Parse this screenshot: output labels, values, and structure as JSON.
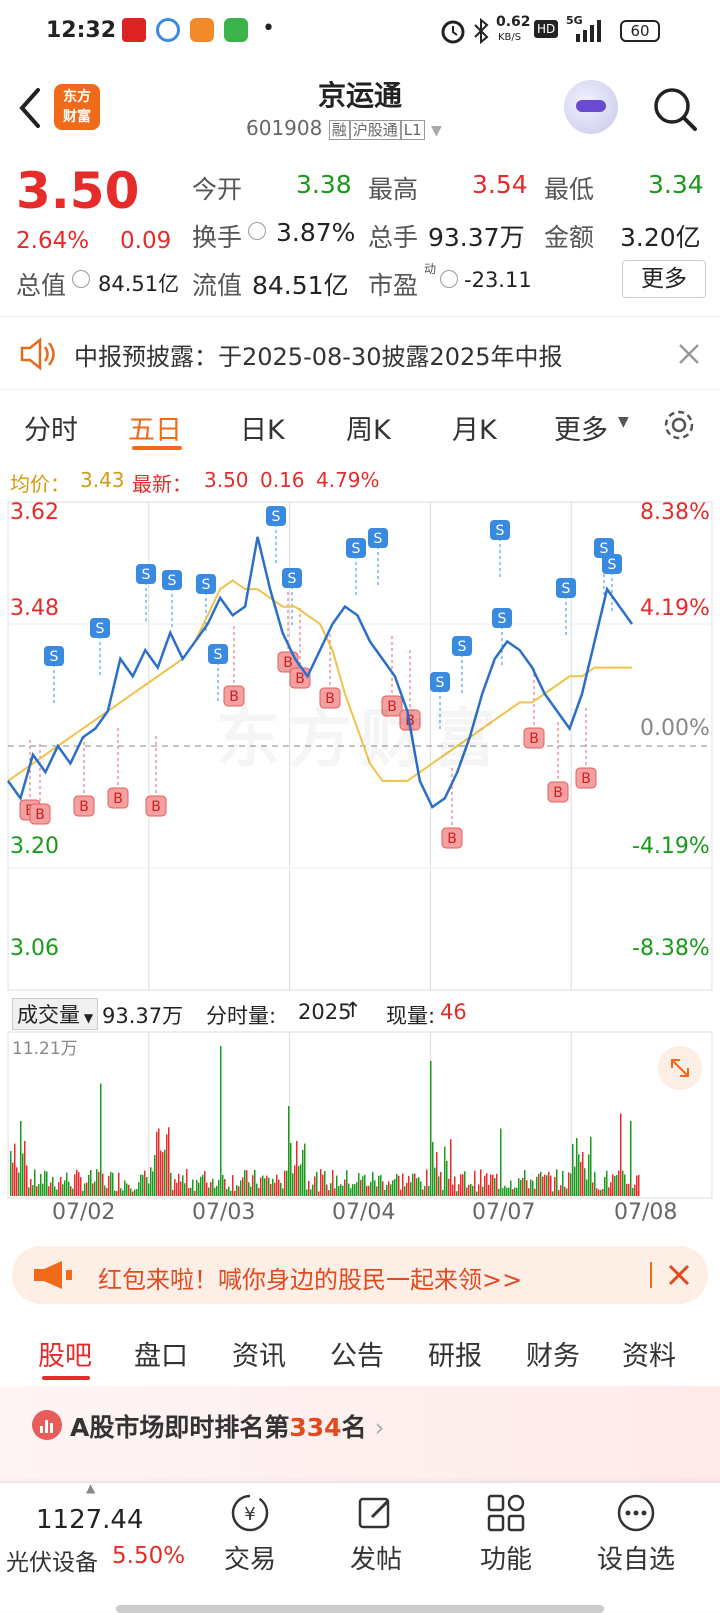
{
  "status": {
    "time": "12:32",
    "dot": "•",
    "net_speed": "0.62",
    "net_unit": "KB/S",
    "hd": "HD",
    "signal": "5G",
    "battery": "60"
  },
  "nav": {
    "logo_line1": "东方",
    "logo_line2": "财富",
    "title": "京运通",
    "code": "601908",
    "tag_margin": "融",
    "tag_connect": "沪股通",
    "tag_level": "L1"
  },
  "quote": {
    "price": "3.50",
    "change_pct": "2.64%",
    "change": "0.09",
    "open_label": "今开",
    "open": "3.38",
    "high_label": "最高",
    "high": "3.54",
    "low_label": "最低",
    "low": "3.34",
    "turnover_label": "换手",
    "turnover": "3.87%",
    "volume_label": "总手",
    "volume": "93.37万",
    "amount_label": "金额",
    "amount": "3.20亿",
    "mcap_label": "总值",
    "mcap": "84.51亿",
    "float_label": "流值",
    "float": "84.51亿",
    "pe_label": "市盈",
    "pe_sup": "动",
    "pe": "-23.11",
    "more": "更多"
  },
  "notice": {
    "text": "中报预披露：于2025-08-30披露2025年中报"
  },
  "tabs": [
    "分时",
    "五日",
    "日K",
    "周K",
    "月K",
    "更多"
  ],
  "avg": {
    "avg_label": "均价：",
    "avg": "3.43",
    "latest_label": "最新：",
    "latest": "3.50",
    "chg": "0.16",
    "pct": "4.79%"
  },
  "chart": {
    "y_top": "3.62",
    "y_mid": "3.48",
    "y_low": "3.20",
    "y_bottom": "3.06",
    "p_top": "8.38%",
    "p_mid": "4.19%",
    "p_zero": "0.00%",
    "p_low": "-4.19%",
    "p_bottom": "-8.38%",
    "watermark": "东方财富"
  },
  "chart_data": {
    "type": "line",
    "title": "",
    "ylim": [
      3.06,
      3.62
    ],
    "days": [
      "07/02",
      "07/03",
      "07/04",
      "07/07",
      "07/08"
    ],
    "series": [
      {
        "values": [
          3.3,
          3.28,
          3.33,
          3.31,
          3.34,
          3.32,
          3.35,
          3.36,
          3.38,
          3.44,
          3.42,
          3.45,
          3.43,
          3.47,
          3.44,
          3.46,
          3.48,
          3.51,
          3.49,
          3.5,
          3.58,
          3.52,
          3.47,
          3.44,
          3.42,
          3.45,
          3.48,
          3.5,
          3.49,
          3.46,
          3.44,
          3.42,
          3.38,
          3.3,
          3.27,
          3.28,
          3.31,
          3.35,
          3.4,
          3.44,
          3.46,
          3.45,
          3.43,
          3.4,
          3.38,
          3.36,
          3.4,
          3.46,
          3.52,
          3.5,
          3.48
        ]
      },
      {
        "values": [
          3.3,
          3.31,
          3.32,
          3.33,
          3.34,
          3.35,
          3.36,
          3.37,
          3.38,
          3.39,
          3.4,
          3.41,
          3.42,
          3.43,
          3.44,
          3.46,
          3.49,
          3.52,
          3.53,
          3.52,
          3.52,
          3.51,
          3.5,
          3.5,
          3.49,
          3.48,
          3.45,
          3.4,
          3.36,
          3.32,
          3.3,
          3.3,
          3.3,
          3.31,
          3.32,
          3.33,
          3.34,
          3.35,
          3.36,
          3.37,
          3.38,
          3.39,
          3.39,
          3.4,
          3.41,
          3.42,
          3.42,
          3.43,
          3.43,
          3.43,
          3.43
        ]
      }
    ]
  },
  "vol": {
    "label": "成交量",
    "total": "93.37万",
    "tick_label": "分时量:",
    "tick": "2025",
    "cur_label": "现量:",
    "cur": "46",
    "max": "11.21万"
  },
  "promo": {
    "text": "红包来啦！喊你身边的股民一起来领>>"
  },
  "bottom_tabs": [
    "股吧",
    "盘口",
    "资讯",
    "公告",
    "研报",
    "财务",
    "资料"
  ],
  "rank": {
    "prefix": "A股市场即时排名第",
    "num": "334",
    "suffix": "名"
  },
  "dock": {
    "index_value": "1127.44",
    "index_name": "光伏设备",
    "index_pct": "5.50%",
    "trade": "交易",
    "post": "发帖",
    "func": "功能",
    "watch": "设自选"
  }
}
